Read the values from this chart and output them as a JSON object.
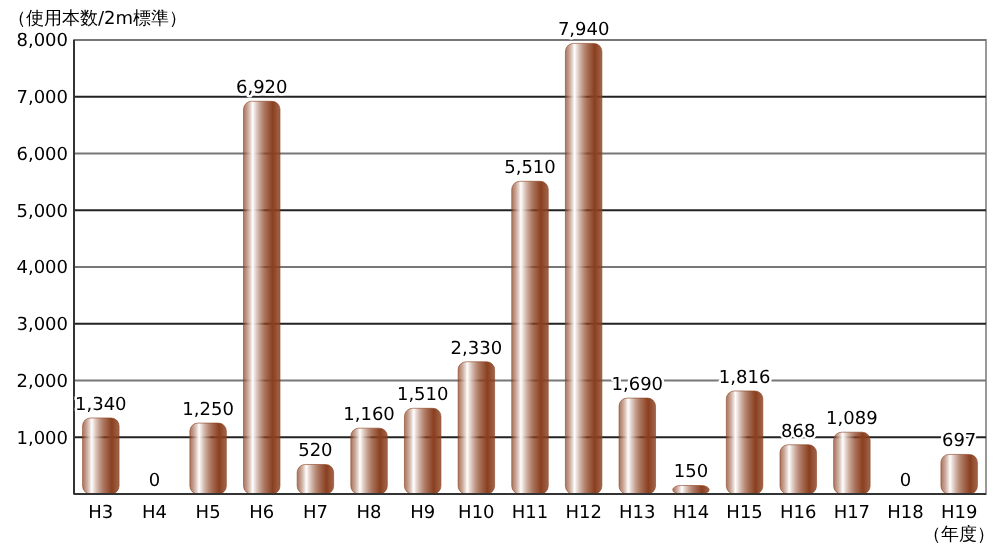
{
  "chart_data": {
    "type": "bar",
    "ylabel": "（使用本数/2m標準）",
    "xlabel": "（年度）",
    "categories": [
      "H3",
      "H4",
      "H5",
      "H6",
      "H7",
      "H8",
      "H9",
      "H10",
      "H11",
      "H12",
      "H13",
      "H14",
      "H15",
      "H16",
      "H17",
      "H18",
      "H19"
    ],
    "values": [
      1340,
      0,
      1250,
      6920,
      520,
      1160,
      1510,
      2330,
      5510,
      7940,
      1690,
      150,
      1816,
      868,
      1089,
      0,
      697
    ],
    "value_labels": [
      "1,340",
      "0",
      "1,250",
      "6,920",
      "520",
      "1,160",
      "1,510",
      "2,330",
      "5,510",
      "7,940",
      "1,690",
      "150",
      "1,816",
      "868",
      "1,089",
      "0",
      "697"
    ],
    "color": "#8a3f1f",
    "ylim": [
      0,
      8000
    ],
    "yticks": [
      {
        "value": 0,
        "label": null
      },
      {
        "value": 1000,
        "label": "1,000"
      },
      {
        "value": 2000,
        "label": "2,000"
      },
      {
        "value": 3000,
        "label": "3,000"
      },
      {
        "value": 4000,
        "label": "4,000"
      },
      {
        "value": 5000,
        "label": "5,000"
      },
      {
        "value": 6000,
        "label": "6,000"
      },
      {
        "value": 7000,
        "label": "7,000"
      },
      {
        "value": 8000,
        "label": "8,000"
      }
    ],
    "grid": "y"
  }
}
